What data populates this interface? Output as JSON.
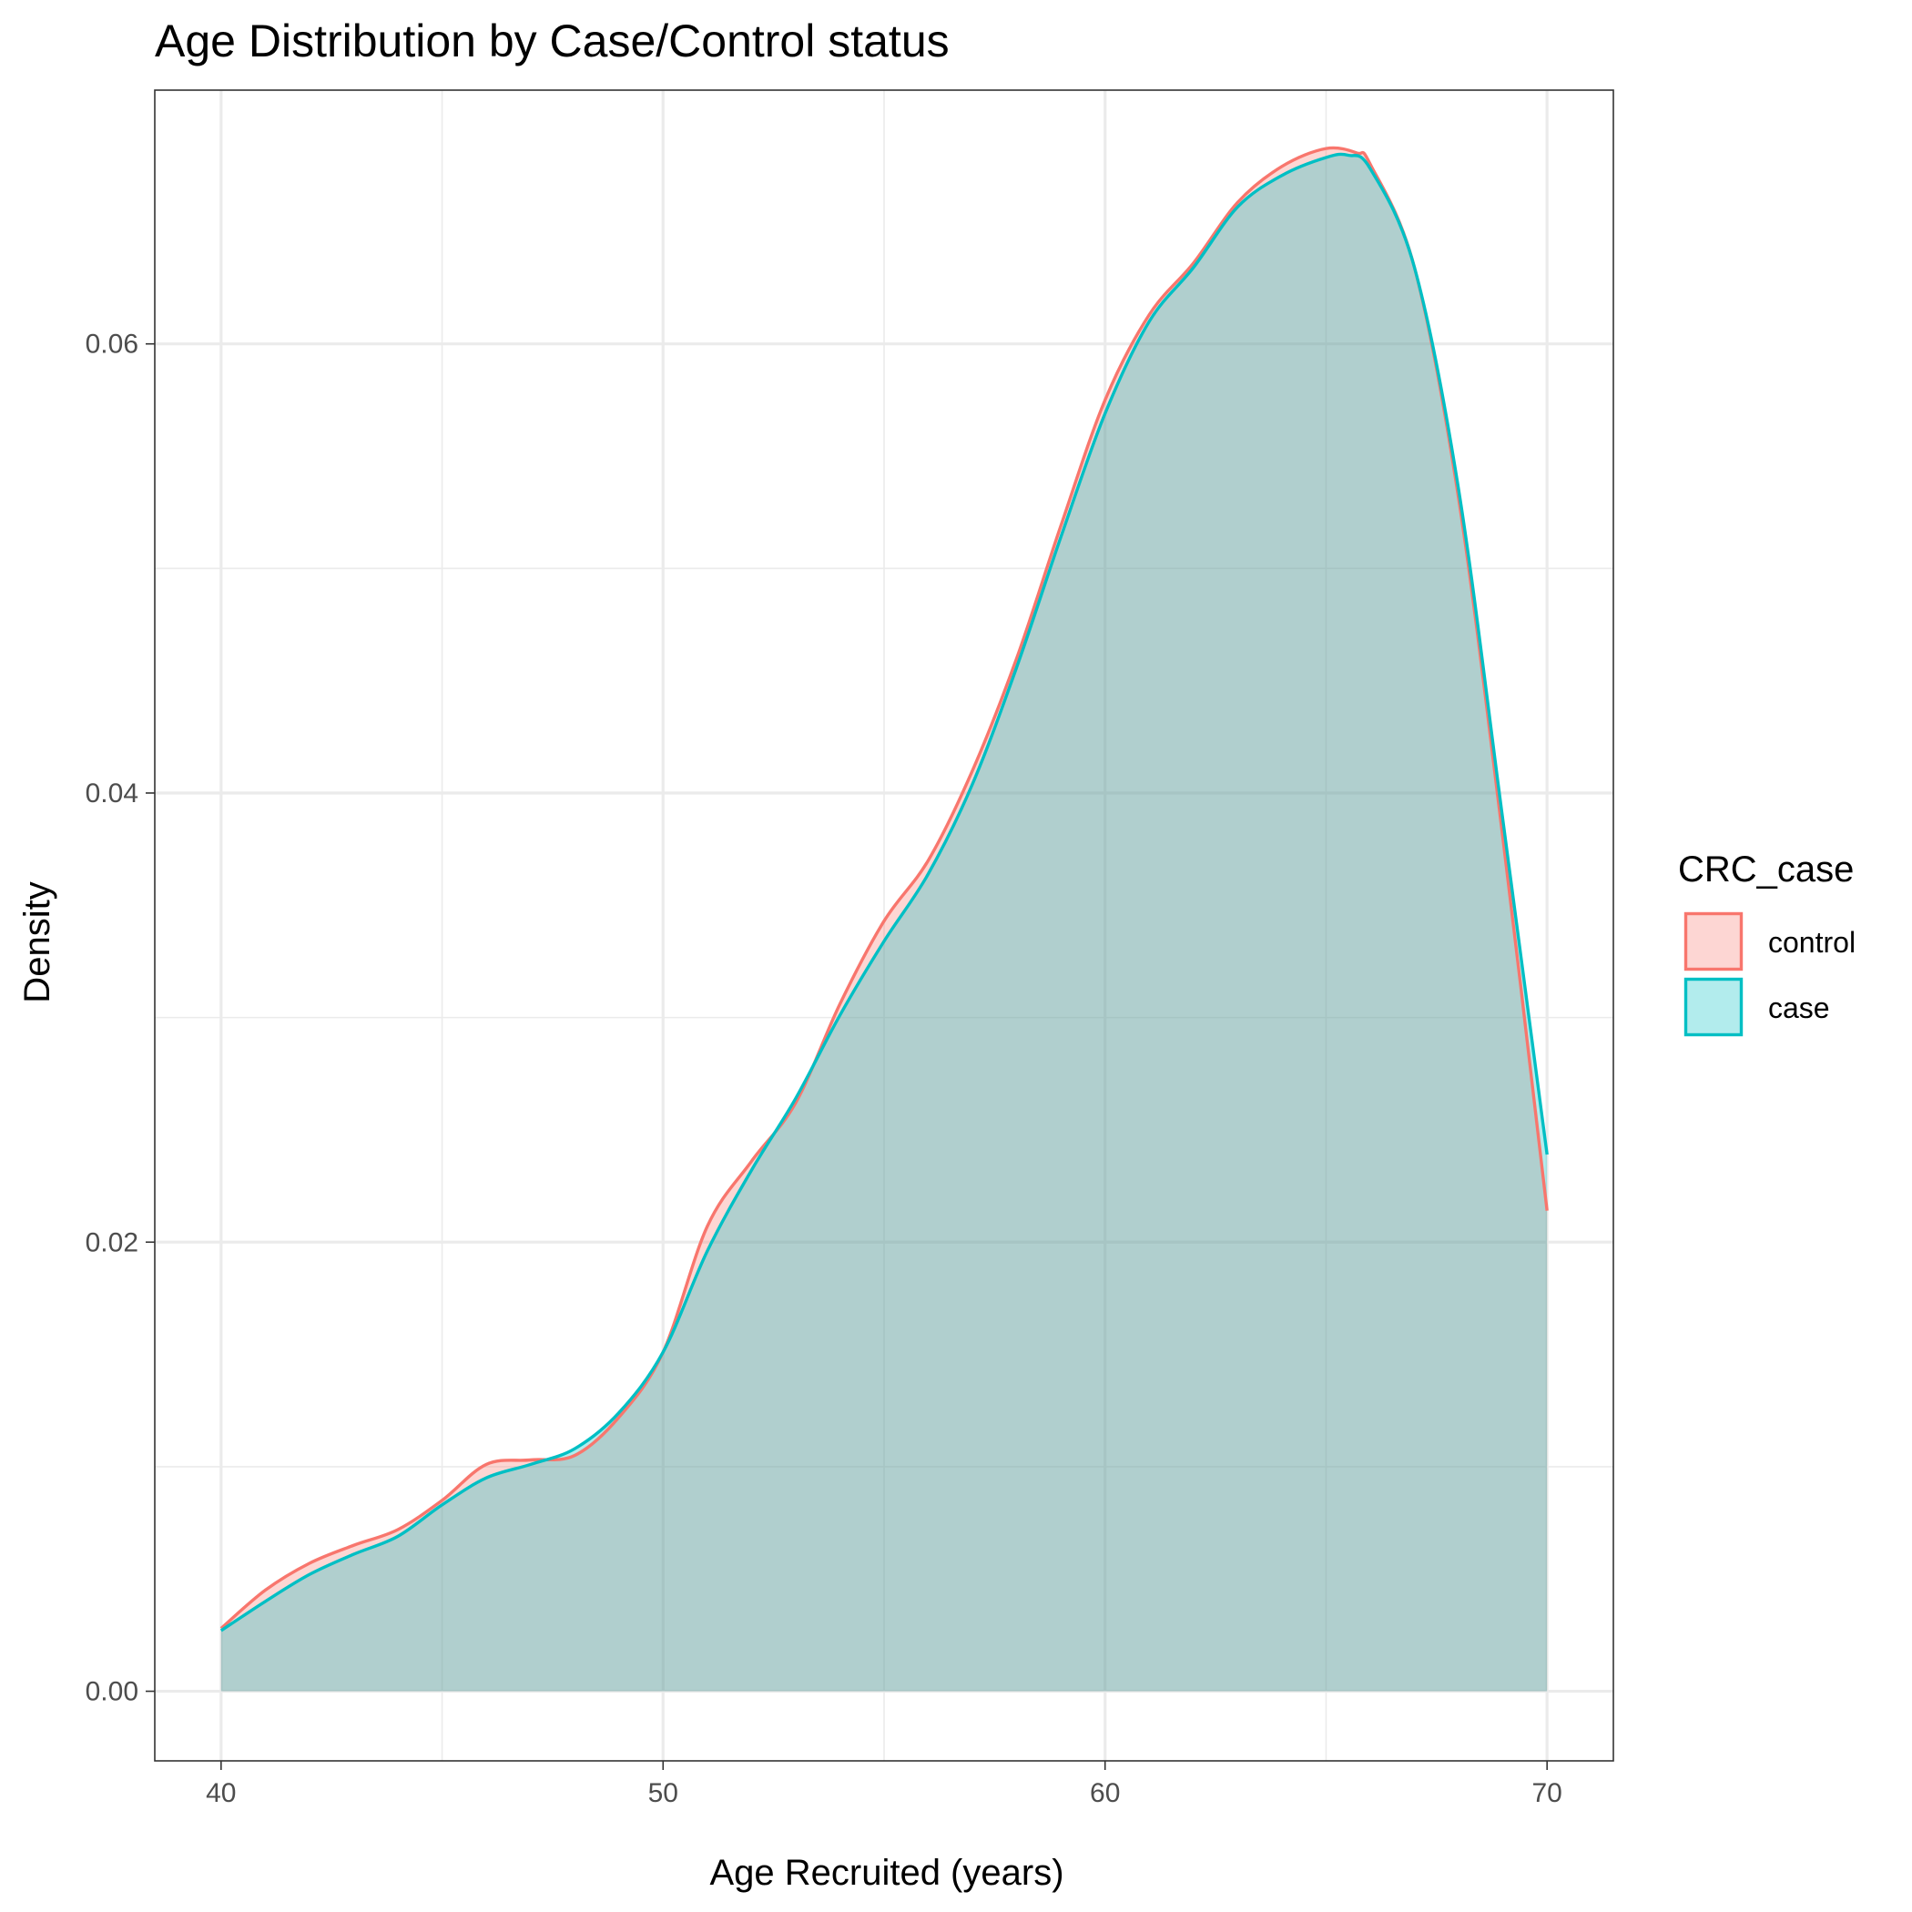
{
  "chart_data": {
    "type": "area",
    "title": "Age Distribution by Case/Control status",
    "xlabel": "Age Recruited (years)",
    "ylabel": "Density",
    "xlim": [
      38.5,
      71.5
    ],
    "ylim": [
      -0.0031,
      0.0713
    ],
    "x_ticks": [
      40,
      50,
      60,
      70
    ],
    "x_tick_labels": [
      "40",
      "50",
      "60",
      "70"
    ],
    "y_ticks": [
      0.0,
      0.02,
      0.04,
      0.06
    ],
    "y_tick_labels": [
      "0.00",
      "0.02",
      "0.04",
      "0.06"
    ],
    "grid": true,
    "legend": {
      "title": "CRC_case",
      "position": "right"
    },
    "series": [
      {
        "name": "control",
        "color": "#F8766D",
        "fill": "#F8766D",
        "x": [
          40,
          41,
          42,
          43,
          44,
          45,
          46,
          47,
          48,
          49,
          50,
          51,
          52,
          53,
          54,
          55,
          56,
          57,
          58,
          59,
          60,
          61,
          62,
          63,
          64,
          65,
          65.7,
          66,
          67,
          68,
          69,
          70
        ],
        "y": [
          0.0028,
          0.0045,
          0.0057,
          0.0065,
          0.0072,
          0.0085,
          0.0101,
          0.0103,
          0.0105,
          0.0122,
          0.0151,
          0.0207,
          0.0236,
          0.0262,
          0.0306,
          0.0343,
          0.037,
          0.041,
          0.046,
          0.0519,
          0.0575,
          0.0613,
          0.0636,
          0.0663,
          0.0679,
          0.0687,
          0.0685,
          0.068,
          0.0634,
          0.0531,
          0.038,
          0.0214
        ]
      },
      {
        "name": "case",
        "color": "#00BFC4",
        "fill": "#00BFC4",
        "x": [
          40,
          41,
          42,
          43,
          44,
          45,
          46,
          47,
          48,
          49,
          50,
          51,
          52,
          53,
          54,
          55,
          56,
          57,
          58,
          59,
          60,
          61,
          62,
          63,
          64,
          65,
          65.5,
          66,
          67,
          68,
          69,
          70
        ],
        "y": [
          0.0027,
          0.004,
          0.0052,
          0.0061,
          0.0069,
          0.0083,
          0.0095,
          0.0101,
          0.0108,
          0.0124,
          0.0151,
          0.0196,
          0.0232,
          0.0264,
          0.0301,
          0.0334,
          0.0364,
          0.0404,
          0.0456,
          0.0514,
          0.0569,
          0.061,
          0.0634,
          0.0661,
          0.0675,
          0.0683,
          0.0684,
          0.0678,
          0.0634,
          0.0535,
          0.0388,
          0.0239
        ]
      }
    ]
  }
}
